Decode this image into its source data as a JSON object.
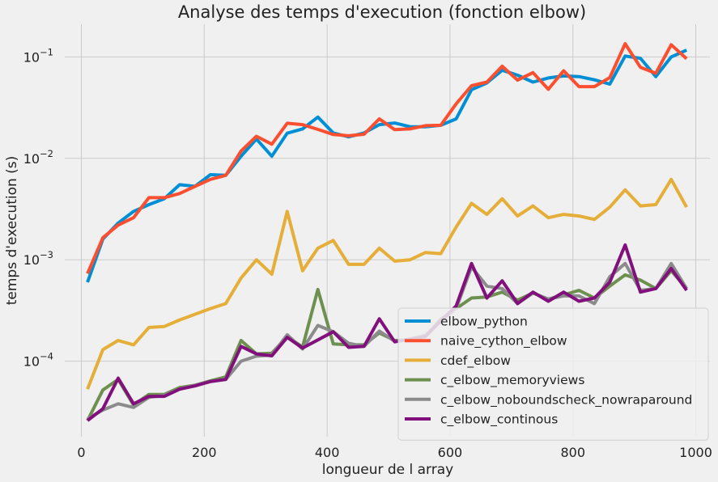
{
  "chart_data": {
    "type": "line",
    "title": "Analyse des temps d'execution (fonction elbow)",
    "xlabel": "longueur de l array",
    "ylabel": "temps d'execution (s)",
    "xlim": [
      -27,
      1023
    ],
    "ylim": [
      1.8e-05,
      0.21
    ],
    "yscale": "log",
    "grid": true,
    "legend_position": "lower-right",
    "x_ticks": [
      {
        "value": 0,
        "label": "0"
      },
      {
        "value": 200,
        "label": "200"
      },
      {
        "value": 400,
        "label": "400"
      },
      {
        "value": 600,
        "label": "600"
      },
      {
        "value": 800,
        "label": "800"
      },
      {
        "value": 1000,
        "label": "1000"
      }
    ],
    "y_ticks": [
      {
        "value": 0.0001,
        "base": "10",
        "exp": "−4"
      },
      {
        "value": 0.001,
        "base": "10",
        "exp": "−3"
      },
      {
        "value": 0.01,
        "base": "10",
        "exp": "−2"
      },
      {
        "value": 0.1,
        "base": "10",
        "exp": "−1"
      }
    ],
    "x": [
      10,
      35,
      60,
      85,
      110,
      135,
      160,
      185,
      210,
      235,
      260,
      285,
      310,
      335,
      360,
      385,
      410,
      435,
      460,
      485,
      510,
      535,
      560,
      585,
      610,
      635,
      660,
      685,
      710,
      735,
      760,
      785,
      810,
      835,
      860,
      885,
      910,
      935,
      960,
      985
    ],
    "series": [
      {
        "name": "elbow_python",
        "color": "#008fd5",
        "values": [
          0.0006,
          0.0016,
          0.0023,
          0.003,
          0.0035,
          0.004,
          0.0055,
          0.0053,
          0.0069,
          0.0068,
          0.0105,
          0.0155,
          0.0105,
          0.0177,
          0.0195,
          0.0255,
          0.0178,
          0.0163,
          0.0178,
          0.0215,
          0.0223,
          0.0205,
          0.0205,
          0.0212,
          0.0245,
          0.0475,
          0.0555,
          0.074,
          0.066,
          0.0565,
          0.062,
          0.065,
          0.064,
          0.0595,
          0.054,
          0.102,
          0.097,
          0.064,
          0.1,
          0.117
        ]
      },
      {
        "name": "naive_cython_elbow",
        "color": "#fc4f30",
        "values": [
          0.00073,
          0.00165,
          0.0022,
          0.0026,
          0.0041,
          0.0041,
          0.0045,
          0.0053,
          0.0062,
          0.0068,
          0.0118,
          0.0165,
          0.0138,
          0.0222,
          0.0215,
          0.0193,
          0.0172,
          0.0167,
          0.0173,
          0.0245,
          0.0192,
          0.0195,
          0.021,
          0.0212,
          0.0345,
          0.052,
          0.0565,
          0.081,
          0.059,
          0.07,
          0.048,
          0.073,
          0.051,
          0.051,
          0.0625,
          0.135,
          0.079,
          0.069,
          0.132,
          0.096
        ]
      },
      {
        "name": "cdef_elbow",
        "color": "#e5ae38",
        "values": [
          5.3e-05,
          0.00013,
          0.00016,
          0.000145,
          0.000215,
          0.00022,
          0.000255,
          0.00029,
          0.00033,
          0.00037,
          0.00066,
          0.001,
          0.00072,
          0.003,
          0.00078,
          0.0013,
          0.00155,
          0.0009,
          0.0009,
          0.0013,
          0.00097,
          0.001,
          0.00118,
          0.00115,
          0.0021,
          0.0036,
          0.0028,
          0.004,
          0.0027,
          0.0034,
          0.0026,
          0.0028,
          0.0027,
          0.0025,
          0.0033,
          0.0049,
          0.0034,
          0.0035,
          0.0062,
          0.0033
        ]
      },
      {
        "name": "c_elbow_memoryviews",
        "color": "#6d904f",
        "values": [
          2.6e-05,
          5.2e-05,
          6.6e-05,
          3.7e-05,
          4.7e-05,
          4.7e-05,
          5.5e-05,
          5.8e-05,
          6.4e-05,
          7e-05,
          0.00016,
          0.000118,
          0.00012,
          0.000175,
          0.000138,
          0.00051,
          0.000148,
          0.000145,
          0.000145,
          0.00019,
          0.00016,
          0.000162,
          0.000175,
          0.00026,
          0.00033,
          0.00042,
          0.00043,
          0.00048,
          0.0004,
          0.00047,
          0.00041,
          0.00045,
          0.0005,
          0.00042,
          0.00055,
          0.00071,
          0.00063,
          0.00052,
          0.00078,
          0.00052
        ]
      },
      {
        "name": "c_elbow_noboundscheck_nowraparound",
        "color": "#8b8b8b",
        "values": [
          2.7e-05,
          3.3e-05,
          3.8e-05,
          3.5e-05,
          4.4e-05,
          4.6e-05,
          5.3e-05,
          5.8e-05,
          6.3e-05,
          6.6e-05,
          0.0001,
          0.000112,
          0.000115,
          0.000182,
          0.000132,
          0.000225,
          0.000195,
          0.00015,
          0.00014,
          0.000198,
          0.000157,
          0.000165,
          0.00018,
          0.00025,
          0.00033,
          0.00085,
          0.00055,
          0.00052,
          0.00037,
          0.00047,
          0.00041,
          0.00044,
          0.00044,
          0.00037,
          0.00068,
          0.00092,
          0.0005,
          0.00052,
          0.00092,
          0.00052
        ]
      },
      {
        "name": "c_elbow_continous",
        "color": "#810f7c",
        "values": [
          2.6e-05,
          3.4e-05,
          6.8e-05,
          3.8e-05,
          4.5e-05,
          4.5e-05,
          5.3e-05,
          5.7e-05,
          6.3e-05,
          6.6e-05,
          0.00014,
          0.000118,
          0.000113,
          0.000172,
          0.000135,
          0.000162,
          0.000195,
          0.000137,
          0.00014,
          0.000262,
          0.000155,
          0.000165,
          0.000175,
          0.00025,
          0.00035,
          0.00092,
          0.00042,
          0.00062,
          0.00037,
          0.00048,
          0.00039,
          0.00048,
          0.00039,
          0.00042,
          0.0006,
          0.0014,
          0.00048,
          0.00052,
          0.00082,
          0.0005
        ]
      }
    ]
  }
}
